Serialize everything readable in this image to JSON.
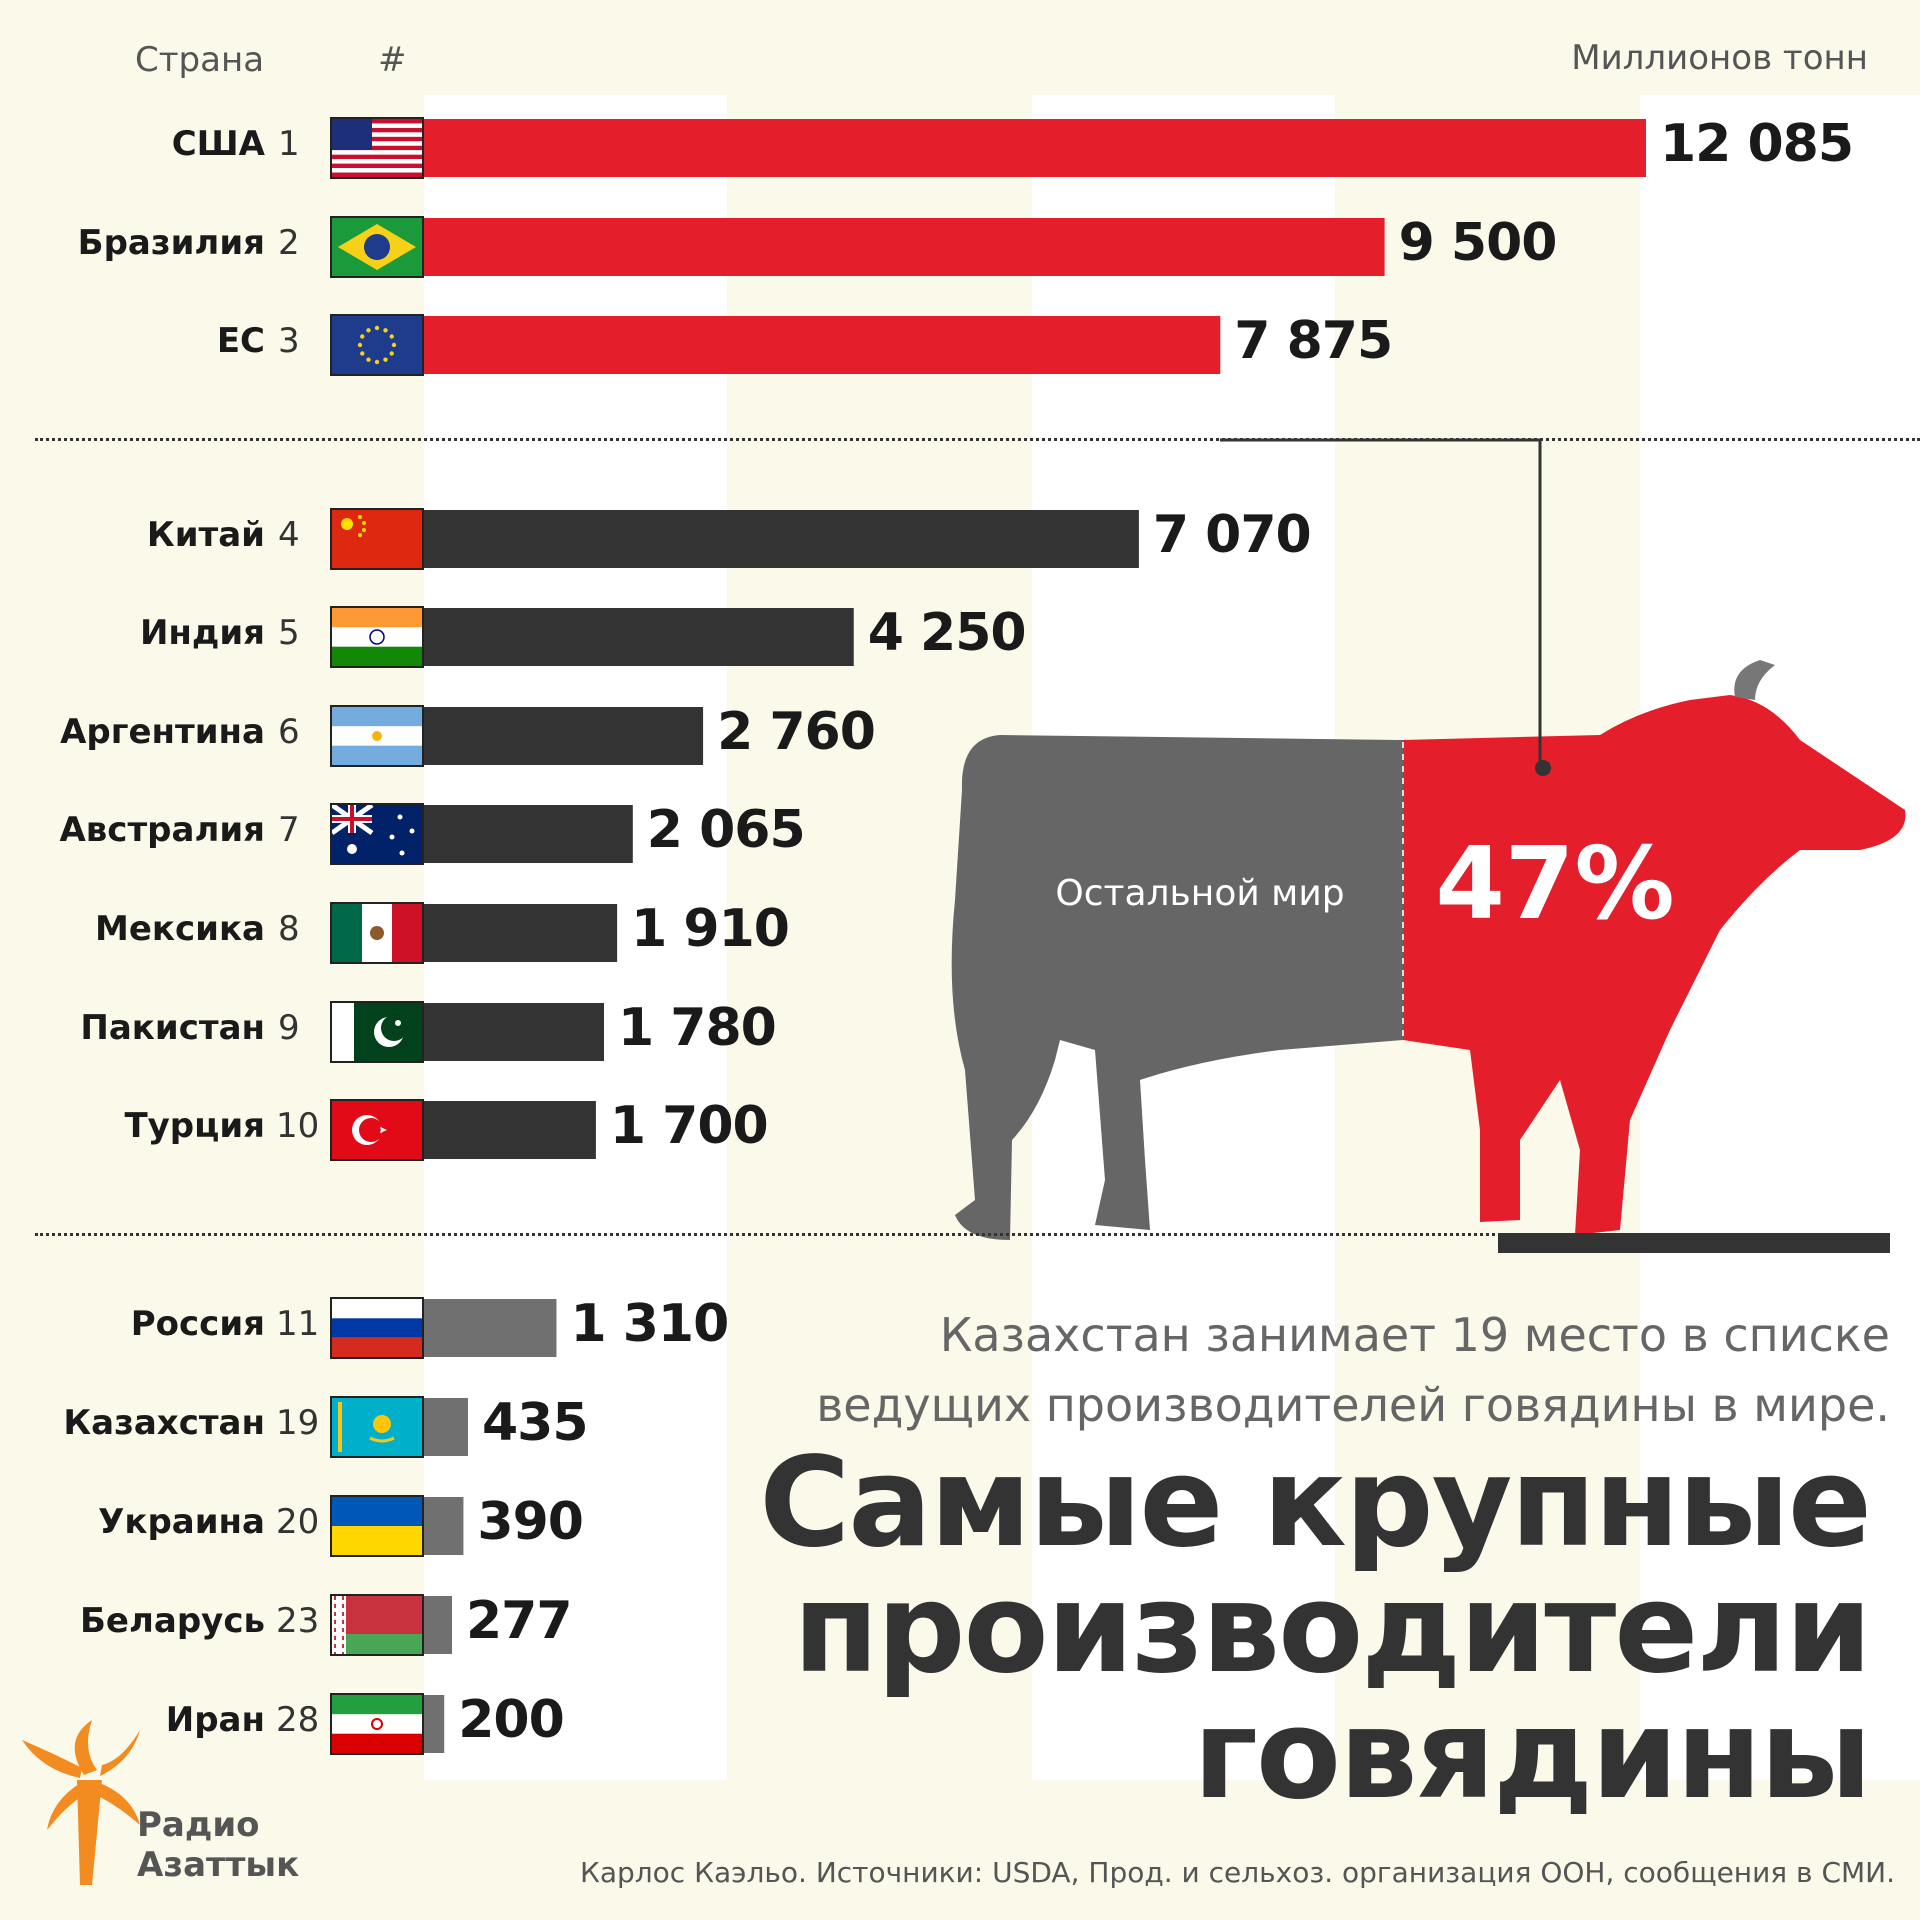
{
  "header": {
    "country_col": "Страна",
    "rank_col": "#",
    "unit": "Миллионов тонн"
  },
  "chart_data": {
    "type": "bar",
    "orientation": "horizontal",
    "title": "Самые крупные производители говядины",
    "unit": "Миллионов тонн",
    "categories": [
      "США",
      "Бразилия",
      "ЕС",
      "Китай",
      "Индия",
      "Аргентина",
      "Австралия",
      "Мексика",
      "Пакистан",
      "Турция",
      "Россия",
      "Казахстан",
      "Украина",
      "Беларусь",
      "Иран"
    ],
    "ranks": [
      1,
      2,
      3,
      4,
      5,
      6,
      7,
      8,
      9,
      10,
      11,
      19,
      20,
      23,
      28
    ],
    "values": [
      12085,
      9500,
      7875,
      7070,
      4250,
      2760,
      2065,
      1910,
      1780,
      1700,
      1310,
      435,
      390,
      277,
      200
    ],
    "value_labels": [
      "12 085",
      "9 500",
      "7 875",
      "7 070",
      "4 250",
      "2 760",
      "2 065",
      "1 910",
      "1 780",
      "1 700",
      "1 310",
      "435",
      "390",
      "277",
      "200"
    ],
    "groups": [
      {
        "indices": [
          0,
          1,
          2
        ],
        "color": "#e41e2b"
      },
      {
        "indices": [
          3,
          4,
          5,
          6,
          7,
          8,
          9
        ],
        "color": "#333333"
      },
      {
        "indices": [
          10,
          11,
          12,
          13,
          14
        ],
        "color": "#707070"
      }
    ],
    "share": {
      "top3_percent_label": "47%",
      "rest_label": "Остальной мир",
      "top3_color": "#e41e2b",
      "rest_color": "#666666"
    }
  },
  "flags": [
    "usa-flag",
    "brazil-flag",
    "eu-flag",
    "china-flag",
    "india-flag",
    "argentina-flag",
    "australia-flag",
    "mexico-flag",
    "pakistan-flag",
    "turkey-flag",
    "russia-flag",
    "kazakhstan-flag",
    "ukraine-flag",
    "belarus-flag",
    "iran-flag"
  ],
  "note": "Казахстан занимает 19 место в списке ведущих производителей говядины в мире.",
  "title_lines": [
    "Самые крупные",
    "производители",
    "говядины"
  ],
  "source": "Карлос Каэльо. Источники: USDA, Прод. и сельхоз. организация ООН, сообщения в СМИ.",
  "logo": {
    "line1": "Радио",
    "line2": "Азаттык"
  }
}
